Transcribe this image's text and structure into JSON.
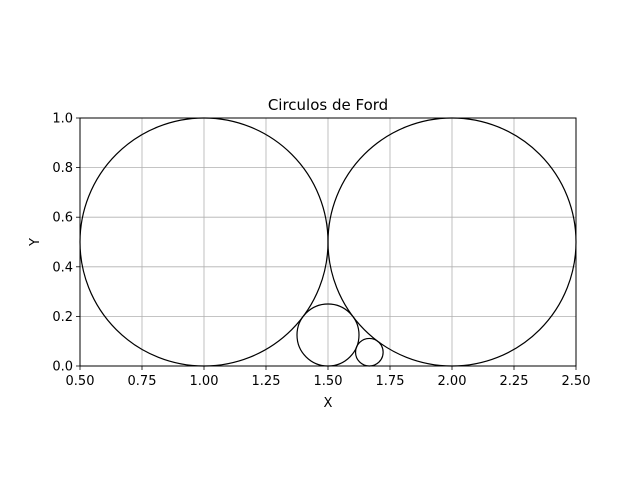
{
  "chart_data": {
    "type": "scatter",
    "title": "Circulos de Ford",
    "xlabel": "X",
    "ylabel": "Y",
    "xlim": [
      0.5,
      2.5
    ],
    "ylim": [
      0.0,
      1.0
    ],
    "xticks": [
      "0.50",
      "0.75",
      "1.00",
      "1.25",
      "1.50",
      "1.75",
      "2.00",
      "2.25",
      "2.50"
    ],
    "yticks": [
      "0.0",
      "0.2",
      "0.4",
      "0.6",
      "0.8",
      "1.0"
    ],
    "grid": true,
    "circles": [
      {
        "cx": 1.0,
        "cy": 0.5,
        "r": 0.5
      },
      {
        "cx": 2.0,
        "cy": 0.5,
        "r": 0.5
      },
      {
        "cx": 1.5,
        "cy": 0.125,
        "r": 0.125
      },
      {
        "cx": 1.6667,
        "cy": 0.0556,
        "r": 0.0556
      }
    ],
    "colors": {
      "circle": "#000000",
      "grid": "#b0b0b0",
      "axes": "#000000"
    }
  }
}
